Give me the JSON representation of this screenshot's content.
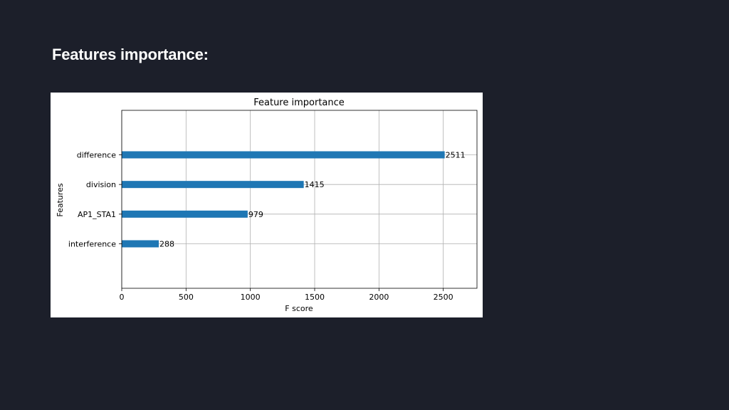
{
  "slide": {
    "title": "Features importance:"
  },
  "colors": {
    "background": "#1c1f2a",
    "bar": "#1f77b4",
    "grid": "#b0b0b0"
  },
  "chart_data": {
    "type": "bar",
    "orientation": "horizontal",
    "title": "Feature importance",
    "xlabel": "F score",
    "ylabel": "Features",
    "categories": [
      "difference",
      "division",
      "AP1_STA1",
      "interference"
    ],
    "values": [
      2511,
      1415,
      979,
      288
    ],
    "data_labels": [
      "2511",
      "1415",
      "979",
      "288"
    ],
    "xlim": [
      0,
      2762
    ],
    "xticks": [
      0,
      500,
      1000,
      1500,
      2000,
      2500
    ],
    "grid": true,
    "legend": "none"
  }
}
